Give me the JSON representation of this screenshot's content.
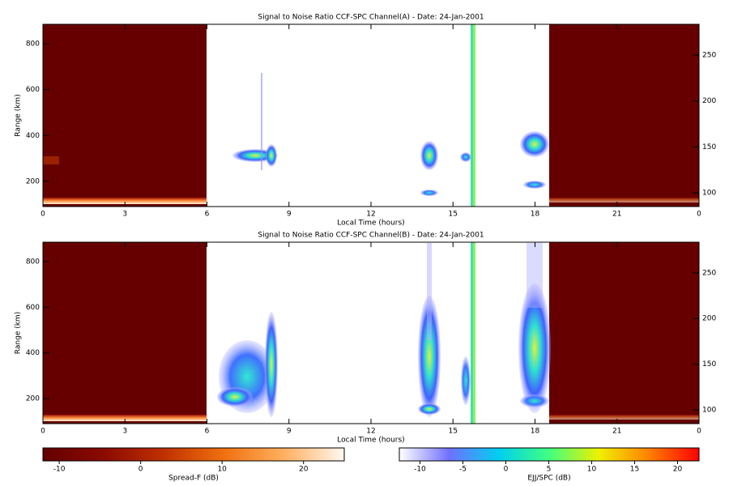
{
  "chart_data": [
    {
      "type": "heatmap",
      "title": "Signal to Noise Ratio CCF-SPC Channel(A) - Date: 24-Jan-2001",
      "xlabel": "Local Time (hours)",
      "ylabel": "Range (km)",
      "xlim": [
        0,
        24
      ],
      "xticks": [
        0,
        3,
        6,
        9,
        12,
        15,
        18,
        21,
        {
          "value": 24,
          "label": "0"
        }
      ],
      "ylim": [
        90,
        885
      ],
      "yticks": [
        200,
        400,
        600,
        800
      ],
      "y2lim": [
        85,
        283.5
      ],
      "y2ticks": [
        100,
        150,
        200,
        250
      ]
    },
    {
      "type": "heatmap",
      "title": "Signal to Noise Ratio CCF-SPC Channel(B) - Date: 24-Jan-2001",
      "xlabel": "Local Time (hours)",
      "ylabel": "Range (km)",
      "xlim": [
        0,
        24
      ],
      "xticks": [
        0,
        3,
        6,
        9,
        12,
        15,
        18,
        21,
        {
          "value": 24,
          "label": "0"
        }
      ],
      "ylim": [
        90,
        885
      ],
      "yticks": [
        200,
        400,
        600,
        800
      ],
      "y2lim": [
        85,
        283.5
      ],
      "y2ticks": [
        100,
        150,
        200,
        250
      ]
    },
    {
      "type": "colorbar",
      "label": "Spread-F (dB)",
      "xlim": [
        -12,
        25
      ],
      "xticks": [
        -10,
        0,
        10,
        20
      ],
      "colors": [
        "#640000",
        "#8a0a00",
        "#c03000",
        "#f07010",
        "#ffb060",
        "#fff8f0"
      ]
    },
    {
      "type": "colorbar",
      "label": "EJJ/SPC (dB)",
      "xlim": [
        -12.4,
        22.5
      ],
      "xticks": [
        -10,
        -5,
        0,
        5,
        10,
        15,
        20
      ],
      "colors": [
        "#ffffff",
        "#7070ff",
        "#00d0f0",
        "#40ff80",
        "#f0f000",
        "#ff8000",
        "#ff0000"
      ]
    }
  ]
}
